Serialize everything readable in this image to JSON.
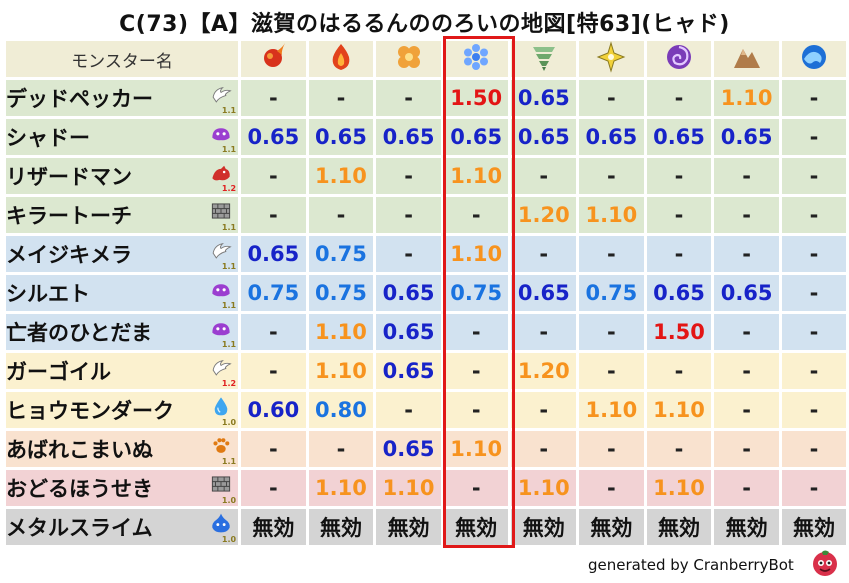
{
  "title": "C(73)【A】滋賀のはるるんののろいの地図[特63](ヒャド)",
  "chart_data": {
    "type": "table",
    "header": "モンスター名",
    "columns": [
      {
        "icon": "fire-ball-icon"
      },
      {
        "icon": "flame-icon"
      },
      {
        "icon": "explosion-clover-icon"
      },
      {
        "icon": "ice-crystal-icon"
      },
      {
        "icon": "tornado-icon"
      },
      {
        "icon": "lightning-sparkle-icon"
      },
      {
        "icon": "dark-spiral-icon"
      },
      {
        "icon": "rock-mountain-icon"
      },
      {
        "icon": "water-wave-icon"
      }
    ],
    "highlighted_column_index": 3,
    "rows": [
      {
        "name": "デッドペッカー",
        "type_icon": "bird-wing-icon",
        "level": "1.1",
        "row_color": "green",
        "cells": [
          {
            "v": "-",
            "c": "neutral"
          },
          {
            "v": "-",
            "c": "neutral"
          },
          {
            "v": "-",
            "c": "neutral"
          },
          {
            "v": "1.50",
            "c": "crit"
          },
          {
            "v": "0.65",
            "c": "res"
          },
          {
            "v": "-",
            "c": "neutral"
          },
          {
            "v": "-",
            "c": "neutral"
          },
          {
            "v": "1.10",
            "c": "weak"
          },
          {
            "v": "-",
            "c": "neutral"
          }
        ]
      },
      {
        "name": "シャドー",
        "type_icon": "purple-slime-icon",
        "level": "1.1",
        "row_color": "green",
        "cells": [
          {
            "v": "0.65",
            "c": "res"
          },
          {
            "v": "0.65",
            "c": "res"
          },
          {
            "v": "0.65",
            "c": "res"
          },
          {
            "v": "0.65",
            "c": "res"
          },
          {
            "v": "0.65",
            "c": "res"
          },
          {
            "v": "0.65",
            "c": "res"
          },
          {
            "v": "0.65",
            "c": "res"
          },
          {
            "v": "0.65",
            "c": "res"
          },
          {
            "v": "-",
            "c": "neutral"
          }
        ]
      },
      {
        "name": "リザードマン",
        "type_icon": "red-dragon-icon",
        "level": "1.2",
        "row_color": "green",
        "cells": [
          {
            "v": "-",
            "c": "neutral"
          },
          {
            "v": "1.10",
            "c": "weak"
          },
          {
            "v": "-",
            "c": "neutral"
          },
          {
            "v": "1.10",
            "c": "weak"
          },
          {
            "v": "-",
            "c": "neutral"
          },
          {
            "v": "-",
            "c": "neutral"
          },
          {
            "v": "-",
            "c": "neutral"
          },
          {
            "v": "-",
            "c": "neutral"
          },
          {
            "v": "-",
            "c": "neutral"
          }
        ]
      },
      {
        "name": "キラートーチ",
        "type_icon": "brick-wall-icon",
        "level": "1.1",
        "row_color": "green",
        "cells": [
          {
            "v": "-",
            "c": "neutral"
          },
          {
            "v": "-",
            "c": "neutral"
          },
          {
            "v": "-",
            "c": "neutral"
          },
          {
            "v": "-",
            "c": "neutral"
          },
          {
            "v": "1.20",
            "c": "weak"
          },
          {
            "v": "1.10",
            "c": "weak"
          },
          {
            "v": "-",
            "c": "neutral"
          },
          {
            "v": "-",
            "c": "neutral"
          },
          {
            "v": "-",
            "c": "neutral"
          }
        ]
      },
      {
        "name": "メイジキメラ",
        "type_icon": "bird-wing-icon",
        "level": "1.1",
        "row_color": "blue",
        "cells": [
          {
            "v": "0.65",
            "c": "res"
          },
          {
            "v": "0.75",
            "c": "res2"
          },
          {
            "v": "-",
            "c": "neutral"
          },
          {
            "v": "1.10",
            "c": "weak"
          },
          {
            "v": "-",
            "c": "neutral"
          },
          {
            "v": "-",
            "c": "neutral"
          },
          {
            "v": "-",
            "c": "neutral"
          },
          {
            "v": "-",
            "c": "neutral"
          },
          {
            "v": "-",
            "c": "neutral"
          }
        ]
      },
      {
        "name": "シルエト",
        "type_icon": "purple-slime-icon",
        "level": "1.1",
        "row_color": "blue",
        "cells": [
          {
            "v": "0.75",
            "c": "res2"
          },
          {
            "v": "0.75",
            "c": "res2"
          },
          {
            "v": "0.65",
            "c": "res"
          },
          {
            "v": "0.75",
            "c": "res2"
          },
          {
            "v": "0.65",
            "c": "res"
          },
          {
            "v": "0.75",
            "c": "res2"
          },
          {
            "v": "0.65",
            "c": "res"
          },
          {
            "v": "0.65",
            "c": "res"
          },
          {
            "v": "-",
            "c": "neutral"
          }
        ]
      },
      {
        "name": "亡者のひとだま",
        "type_icon": "purple-slime-icon",
        "level": "1.1",
        "row_color": "blue",
        "cells": [
          {
            "v": "-",
            "c": "neutral"
          },
          {
            "v": "1.10",
            "c": "weak"
          },
          {
            "v": "0.65",
            "c": "res"
          },
          {
            "v": "-",
            "c": "neutral"
          },
          {
            "v": "-",
            "c": "neutral"
          },
          {
            "v": "-",
            "c": "neutral"
          },
          {
            "v": "1.50",
            "c": "crit"
          },
          {
            "v": "-",
            "c": "neutral"
          },
          {
            "v": "-",
            "c": "neutral"
          }
        ]
      },
      {
        "name": "ガーゴイル",
        "type_icon": "bird-wing-icon",
        "level": "1.2",
        "row_color": "yellow",
        "cells": [
          {
            "v": "-",
            "c": "neutral"
          },
          {
            "v": "1.10",
            "c": "weak"
          },
          {
            "v": "0.65",
            "c": "res"
          },
          {
            "v": "-",
            "c": "neutral"
          },
          {
            "v": "1.20",
            "c": "weak"
          },
          {
            "v": "-",
            "c": "neutral"
          },
          {
            "v": "-",
            "c": "neutral"
          },
          {
            "v": "-",
            "c": "neutral"
          },
          {
            "v": "-",
            "c": "neutral"
          }
        ]
      },
      {
        "name": "ヒョウモンダーク",
        "type_icon": "water-drop-icon",
        "level": "1.0",
        "row_color": "yellow",
        "cells": [
          {
            "v": "0.60",
            "c": "res"
          },
          {
            "v": "0.80",
            "c": "res2"
          },
          {
            "v": "-",
            "c": "neutral"
          },
          {
            "v": "-",
            "c": "neutral"
          },
          {
            "v": "-",
            "c": "neutral"
          },
          {
            "v": "1.10",
            "c": "weak"
          },
          {
            "v": "1.10",
            "c": "weak"
          },
          {
            "v": "-",
            "c": "neutral"
          },
          {
            "v": "-",
            "c": "neutral"
          }
        ]
      },
      {
        "name": "あばれこまいぬ",
        "type_icon": "paw-print-icon",
        "level": "1.1",
        "row_color": "peach",
        "cells": [
          {
            "v": "-",
            "c": "neutral"
          },
          {
            "v": "-",
            "c": "neutral"
          },
          {
            "v": "0.65",
            "c": "res"
          },
          {
            "v": "1.10",
            "c": "weak"
          },
          {
            "v": "-",
            "c": "neutral"
          },
          {
            "v": "-",
            "c": "neutral"
          },
          {
            "v": "-",
            "c": "neutral"
          },
          {
            "v": "-",
            "c": "neutral"
          },
          {
            "v": "-",
            "c": "neutral"
          }
        ]
      },
      {
        "name": "おどるほうせき",
        "type_icon": "brick-wall-icon",
        "level": "1.0",
        "row_color": "pink",
        "cells": [
          {
            "v": "-",
            "c": "neutral"
          },
          {
            "v": "1.10",
            "c": "weak"
          },
          {
            "v": "1.10",
            "c": "weak"
          },
          {
            "v": "-",
            "c": "neutral"
          },
          {
            "v": "1.10",
            "c": "weak"
          },
          {
            "v": "-",
            "c": "neutral"
          },
          {
            "v": "1.10",
            "c": "weak"
          },
          {
            "v": "-",
            "c": "neutral"
          },
          {
            "v": "-",
            "c": "neutral"
          }
        ]
      },
      {
        "name": "メタルスライム",
        "type_icon": "blue-slime-icon",
        "level": "1.0",
        "row_color": "gray",
        "cells": [
          {
            "v": "無効",
            "c": "null"
          },
          {
            "v": "無効",
            "c": "null"
          },
          {
            "v": "無効",
            "c": "null"
          },
          {
            "v": "無効",
            "c": "null"
          },
          {
            "v": "無効",
            "c": "null"
          },
          {
            "v": "無効",
            "c": "null"
          },
          {
            "v": "無効",
            "c": "null"
          },
          {
            "v": "無効",
            "c": "null"
          },
          {
            "v": "無効",
            "c": "null"
          }
        ]
      }
    ]
  },
  "colors": {
    "resist_strong": "#1723c8",
    "resist_light": "#1a73e0",
    "weak": "#f7931e",
    "critical": "#e31515",
    "highlight_border": "#e01818",
    "row_green": "#dce8d0",
    "row_blue": "#d2e2f0",
    "row_yellow": "#fbf1cf",
    "row_peach": "#f9e2cf",
    "row_pink": "#f2d2d4",
    "row_gray": "#d4d4d4",
    "header_bg": "#f0edd6"
  },
  "footer": {
    "text": "generated by CranberryBot",
    "icon": "cranberry-bot-icon"
  }
}
